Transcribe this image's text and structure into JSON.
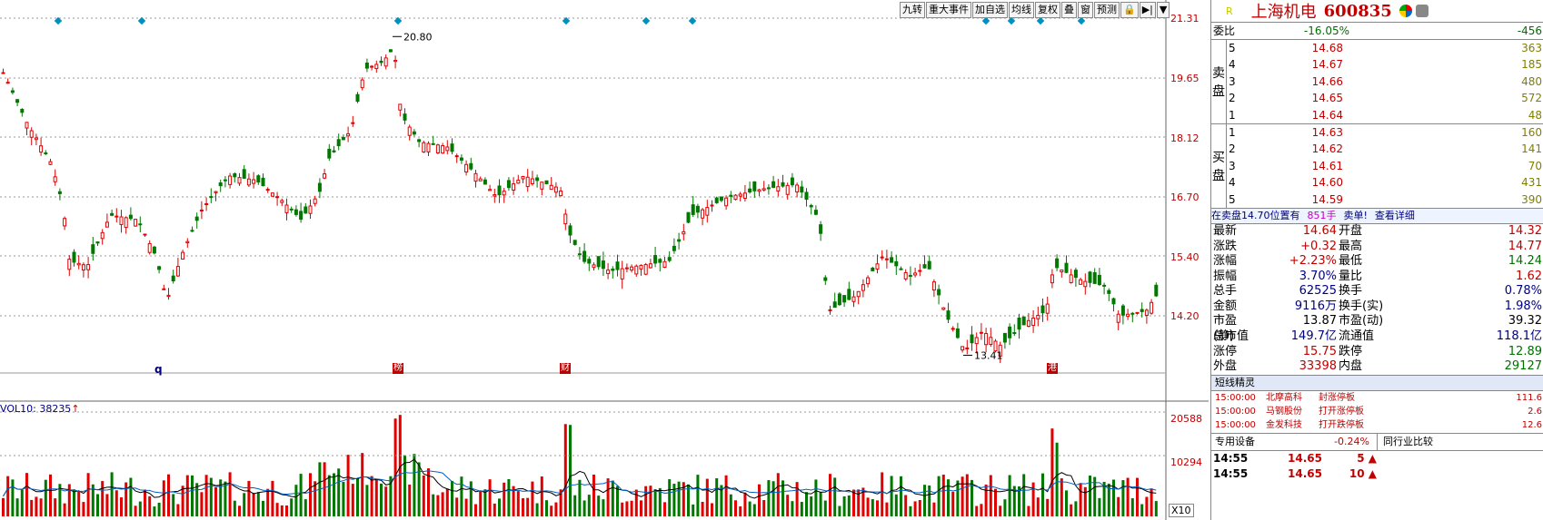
{
  "toolbar": [
    "九转",
    "重大事件",
    "加自选",
    "均线",
    "复权",
    "叠",
    "窗",
    "预测",
    "🔒",
    "▶|",
    "▼"
  ],
  "chart_data": {
    "type": "candlestick",
    "price_axis": [
      "21.31",
      "19.65",
      "18.12",
      "16.70",
      "15.40",
      "14.20"
    ],
    "high_annotation": "20.80",
    "low_annotation": "13.41",
    "volume_axis": [
      "20588",
      "10294"
    ],
    "volume_title": "VOL10: 38235",
    "volume_arrow": "↑",
    "x10_label": "X10",
    "marker_q": "q",
    "markers": [
      "榜",
      "财",
      "港"
    ],
    "colors": {
      "up": "#e00000",
      "down": "#007800",
      "grid": "#999999",
      "ma": "#000000",
      "ma2": "#0060c0"
    }
  },
  "panel": {
    "r_label": "R",
    "name": "上海机电",
    "code": "600835",
    "webi": {
      "label": "委比",
      "ratio": "-16.05%",
      "diff": "-456"
    },
    "sell_label": [
      "卖",
      "盘"
    ],
    "buy_label": [
      "买",
      "盘"
    ],
    "sell": [
      {
        "n": "5",
        "p": "14.68",
        "q": "363"
      },
      {
        "n": "4",
        "p": "14.67",
        "q": "185"
      },
      {
        "n": "3",
        "p": "14.66",
        "q": "480"
      },
      {
        "n": "2",
        "p": "14.65",
        "q": "572"
      },
      {
        "n": "1",
        "p": "14.64",
        "q": "48"
      }
    ],
    "buy": [
      {
        "n": "1",
        "p": "14.63",
        "q": "160"
      },
      {
        "n": "2",
        "p": "14.62",
        "q": "141"
      },
      {
        "n": "3",
        "p": "14.61",
        "q": "70"
      },
      {
        "n": "4",
        "p": "14.60",
        "q": "431"
      },
      {
        "n": "5",
        "p": "14.59",
        "q": "390"
      }
    ],
    "notice": {
      "a": "在卖盘14.70位置有",
      "b": "851手",
      "c": "卖单!",
      "d": "查看详细"
    },
    "quote": [
      {
        "k": "最新",
        "v": "14.64",
        "vc": "red",
        "k2": "开盘",
        "v2": "14.32",
        "v2c": "red"
      },
      {
        "k": "涨跌",
        "v": "+0.32",
        "vc": "red",
        "k2": "最高",
        "v2": "14.77",
        "v2c": "red"
      },
      {
        "k": "涨幅",
        "v": "+2.23%",
        "vc": "red",
        "k2": "最低",
        "v2": "14.24",
        "v2c": "grn"
      },
      {
        "k": "振幅",
        "v": "3.70%",
        "vc": "blu",
        "k2": "量比",
        "v2": "1.62",
        "v2c": "red"
      },
      {
        "k": "总手",
        "v": "62525",
        "vc": "blu",
        "k2": "换手",
        "v2": "0.78%",
        "v2c": "blu"
      },
      {
        "k": "金额",
        "v": "9116万",
        "vc": "blu",
        "k2": "换手(实)",
        "v2": "1.98%",
        "v2c": "blu"
      },
      {
        "k": "市盈(静)",
        "v": "13.87",
        "vc": "",
        "k2": "市盈(动)",
        "v2": "39.32",
        "v2c": ""
      },
      {
        "k": "总市值",
        "v": "149.7亿",
        "vc": "blu",
        "k2": "流通值",
        "v2": "118.1亿",
        "v2c": "blu"
      },
      {
        "k": "涨停",
        "v": "15.75",
        "vc": "red",
        "k2": "跌停",
        "v2": "12.89",
        "v2c": "grn"
      },
      {
        "k": "外盘",
        "v": "33398",
        "vc": "red",
        "k2": "内盘",
        "v2": "29127",
        "v2c": "grn"
      }
    ],
    "sx_title": "短线精灵",
    "sx": [
      {
        "t": "15:00:00",
        "nm": "北摩高科",
        "ev": "封涨停板",
        "val": "111.6"
      },
      {
        "t": "15:00:00",
        "nm": "马钢股份",
        "ev": "打开涨停板",
        "val": "2.6"
      },
      {
        "t": "15:00:00",
        "nm": "金发科技",
        "ev": "打开跌停板",
        "val": "12.6"
      }
    ],
    "sector": {
      "name": "专用设备",
      "pct": "-0.24%",
      "compare": "同行业比较"
    },
    "ticks": [
      {
        "t": "14:55",
        "p": "14.65",
        "v": "5"
      },
      {
        "t": "14:55",
        "p": "14.65",
        "v": "10"
      }
    ]
  }
}
